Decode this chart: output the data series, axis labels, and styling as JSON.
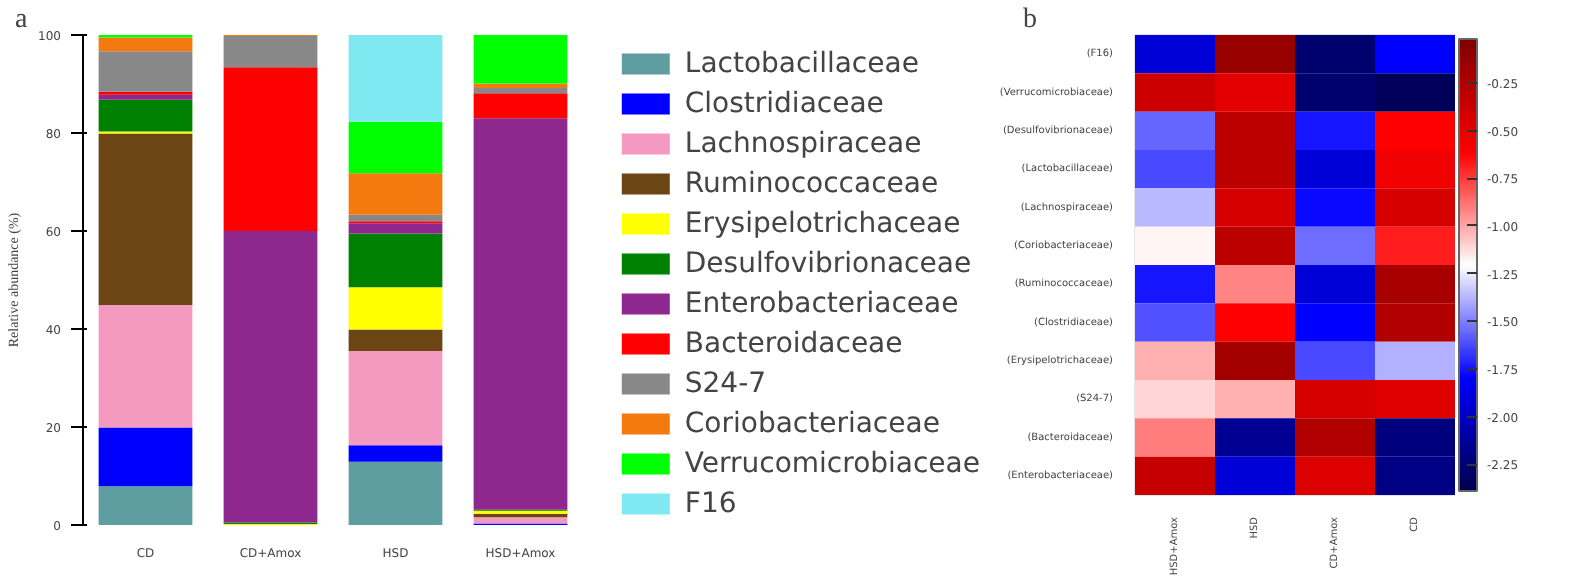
{
  "chart_data": [
    {
      "type": "bar",
      "stacked": true,
      "ylabel": "Relative abundance (%)",
      "annotations": [
        "a"
      ],
      "legend": "right",
      "categories": [
        "CD",
        "CD+Amox",
        "HSD",
        "HSD+Amox"
      ],
      "ylim": [
        0,
        100
      ],
      "yticks": [
        0,
        20,
        40,
        60,
        80,
        100
      ],
      "series": [
        {
          "name": "Lactobacillaceae",
          "color": "#5f9ea0",
          "values": [
            7.9,
            0,
            12.9,
            0
          ]
        },
        {
          "name": "Clostridiaceae",
          "color": "#0000ff",
          "values": [
            12.0,
            0,
            3.4,
            0.3
          ]
        },
        {
          "name": "Lachnospiraceae",
          "color": "#f49ac1",
          "values": [
            25.0,
            0,
            19.2,
            1.3
          ]
        },
        {
          "name": "Ruminococcaceae",
          "color": "#6b4513",
          "values": [
            35.0,
            0,
            4.4,
            0.7
          ]
        },
        {
          "name": "Erysipelotrichaceae",
          "color": "#ffff00",
          "values": [
            0.4,
            0.2,
            8.6,
            0.6
          ]
        },
        {
          "name": "Desulfovibrionaceae",
          "color": "#008000",
          "values": [
            6.5,
            0.3,
            11.0,
            0.2
          ]
        },
        {
          "name": "Enterobacteriaceae",
          "color": "#8e278e",
          "values": [
            1.0,
            59.5,
            2.1,
            79.9
          ]
        },
        {
          "name": "Bacteroidaceae",
          "color": "#ff0000",
          "values": [
            0.6,
            33.4,
            0.4,
            5.1
          ]
        },
        {
          "name": "S24-7",
          "color": "#888888",
          "values": [
            8.3,
            6.4,
            1.3,
            1.1
          ]
        },
        {
          "name": "Coriobacteriaceae",
          "color": "#f47a10",
          "values": [
            2.8,
            0.2,
            8.5,
            0.9
          ]
        },
        {
          "name": "Verrucomicrobiaceae",
          "color": "#00ff00",
          "values": [
            0.5,
            0,
            10.5,
            9.9
          ]
        },
        {
          "name": "F16",
          "color": "#7fe8f0",
          "values": [
            0,
            0,
            17.7,
            0
          ]
        }
      ]
    },
    {
      "type": "heatmap",
      "annotations": [
        "b"
      ],
      "categories": [
        "HSD+Amox",
        "HSD",
        "CD+Amox",
        "CD"
      ],
      "y_categories": [
        "(F16)",
        "(Verrucomicrobiaceae)",
        "(Desulfovibrionaceae)",
        "(Lactobacillaceae)",
        "(Lachnospiraceae)",
        "(Coriobacteriaceae)",
        "(Ruminococcaceae)",
        "(Clostridiaceae)",
        "(Erysipelotrichaceae)",
        "(S24-7)",
        "(Bacteroidaceae)",
        "(Enterobacteriaceae)"
      ],
      "cells": [
        [
          -1.92,
          -0.14,
          -2.27,
          -1.8
        ],
        [
          -0.38,
          -0.49,
          -2.27,
          -2.34
        ],
        [
          -1.56,
          -0.3,
          -1.75,
          -0.61
        ],
        [
          -1.63,
          -0.3,
          -1.92,
          -0.54
        ],
        [
          -1.37,
          -0.42,
          -1.77,
          -0.42
        ],
        [
          -1.18,
          -0.3,
          -1.54,
          -0.68
        ],
        [
          -1.75,
          -0.92,
          -1.92,
          -0.21
        ],
        [
          -1.61,
          -0.61,
          -1.8,
          -0.26
        ],
        [
          -1.02,
          -0.19,
          -1.63,
          -1.39
        ],
        [
          -1.11,
          -1.02,
          -0.42,
          -0.47
        ],
        [
          -0.9,
          -2.15,
          -0.26,
          -2.22
        ],
        [
          -0.35,
          -1.92,
          -0.45,
          -2.2
        ]
      ],
      "clim": [
        -2.39,
        -0.02
      ],
      "cticks": [
        -0.25,
        {
          "value": -0.5,
          "label": "-0.50"
        },
        -0.75,
        {
          "value": -1.0,
          "label": "-1.00"
        },
        -1.25,
        {
          "value": -1.5,
          "label": "-1.50"
        },
        -1.75,
        {
          "value": -2.0,
          "label": "-2.00"
        },
        -2.25
      ]
    }
  ]
}
